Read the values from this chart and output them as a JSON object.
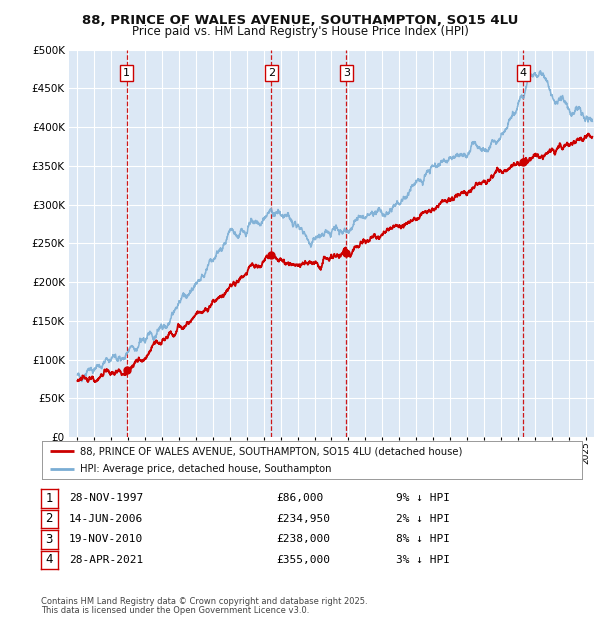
{
  "title1": "88, PRINCE OF WALES AVENUE, SOUTHAMPTON, SO15 4LU",
  "title2": "Price paid vs. HM Land Registry's House Price Index (HPI)",
  "legend_line1": "88, PRINCE OF WALES AVENUE, SOUTHAMPTON, SO15 4LU (detached house)",
  "legend_line2": "HPI: Average price, detached house, Southampton",
  "footer1": "Contains HM Land Registry data © Crown copyright and database right 2025.",
  "footer2": "This data is licensed under the Open Government Licence v3.0.",
  "transactions": [
    {
      "num": 1,
      "date": "28-NOV-1997",
      "price": 86000,
      "pct": "9%",
      "dir": "↓",
      "year": 1997.91
    },
    {
      "num": 2,
      "date": "14-JUN-2006",
      "price": 234950,
      "pct": "2%",
      "dir": "↓",
      "year": 2006.45
    },
    {
      "num": 3,
      "date": "19-NOV-2010",
      "price": 238000,
      "pct": "8%",
      "dir": "↓",
      "year": 2010.88
    },
    {
      "num": 4,
      "date": "28-APR-2021",
      "price": 355000,
      "pct": "3%",
      "dir": "↓",
      "year": 2021.32
    }
  ],
  "ylim": [
    0,
    500000
  ],
  "xlim": [
    1994.5,
    2025.5
  ],
  "yticks": [
    0,
    50000,
    100000,
    150000,
    200000,
    250000,
    300000,
    350000,
    400000,
    450000,
    500000
  ],
  "plot_bg": "#dce8f5",
  "grid_color": "#ffffff",
  "red_line": "#cc0000",
  "blue_line": "#7aadd4",
  "dashed_color": "#cc0000",
  "box_edge": "#cc0000"
}
